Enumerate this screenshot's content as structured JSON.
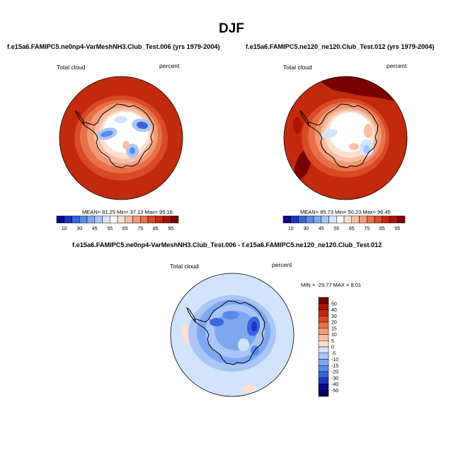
{
  "page": {
    "title": "DJF"
  },
  "panels": [
    {
      "title": "f.e15a6.FAMIPC5.ne0np4-VarMeshNH3.Club_Test.006 (yrs 1979-2004)",
      "left_label": "Total cloud",
      "right_label": "percent",
      "stats_text": "MEAN=  81.25  Min=  37.13  Max=  95.16"
    },
    {
      "title": "f.e15a6.FAMIPC5.ne120_ne120.Club_Test.012 (yrs 1979-2004)",
      "left_label": "Total cloud",
      "right_label": "percent",
      "stats_text": "MEAN=  85.73  Min=  50.23  Max=  96.45"
    },
    {
      "title": "f.e15a6.FAMIPC5.ne0np4-VarMeshNH3.Club_Test.006 - f.e15a6.FAMIPC5.ne120_ne120.Club_Test.012",
      "left_label": "Total cloud",
      "right_label": "percent",
      "stats_text": "MIN = -29.77  MAX =    8.01"
    }
  ],
  "chart_data": [
    {
      "type": "heatmap",
      "title": "f.e15a6.FAMIPC5.ne0np4-VarMeshNH3.Club_Test.006 (yrs 1979-2004)",
      "variable": "Total cloud",
      "units": "percent",
      "projection": "south polar stereographic",
      "stats": {
        "mean": 81.25,
        "min": 37.13,
        "max": 95.16
      },
      "colorbar": {
        "levels": [
          10,
          20,
          30,
          40,
          45,
          50,
          55,
          60,
          65,
          70,
          75,
          80,
          85,
          90,
          95
        ],
        "tick_labels": [
          "10",
          "30",
          "45",
          "55",
          "65",
          "75",
          "85",
          "95"
        ],
        "colors": [
          "#08088a",
          "#1f33c4",
          "#3a64dc",
          "#5a8ae8",
          "#7ea7f0",
          "#a9c6f7",
          "#d2e4fb",
          "#ffffff",
          "#fde0d0",
          "#f9bfa3",
          "#f29a77",
          "#e87049",
          "#d84b24",
          "#c22a0c",
          "#a81500",
          "#7a0000"
        ]
      }
    },
    {
      "type": "heatmap",
      "title": "f.e15a6.FAMIPC5.ne120_ne120.Club_Test.012 (yrs 1979-2004)",
      "variable": "Total cloud",
      "units": "percent",
      "projection": "south polar stereographic",
      "stats": {
        "mean": 85.73,
        "min": 50.23,
        "max": 96.45
      },
      "colorbar": {
        "levels": [
          10,
          20,
          30,
          40,
          45,
          50,
          55,
          60,
          65,
          70,
          75,
          80,
          85,
          90,
          95
        ],
        "tick_labels": [
          "10",
          "30",
          "45",
          "55",
          "65",
          "75",
          "85",
          "95"
        ],
        "colors": [
          "#08088a",
          "#1f33c4",
          "#3a64dc",
          "#5a8ae8",
          "#7ea7f0",
          "#a9c6f7",
          "#d2e4fb",
          "#ffffff",
          "#fde0d0",
          "#f9bfa3",
          "#f29a77",
          "#e87049",
          "#d84b24",
          "#c22a0c",
          "#a81500",
          "#7a0000"
        ]
      }
    },
    {
      "type": "heatmap",
      "title": "f.e15a6.FAMIPC5.ne0np4-VarMeshNH3.Club_Test.006 - f.e15a6.FAMIPC5.ne120_ne120.Club_Test.012",
      "variable": "Total cloud",
      "units": "percent",
      "projection": "south polar stereographic",
      "stats": {
        "min": -29.77,
        "max": 8.01
      },
      "colorbar": {
        "orientation": "vertical",
        "levels": [
          50,
          40,
          30,
          20,
          15,
          10,
          5,
          0,
          -5,
          -10,
          -15,
          -20,
          -30,
          -40,
          -50
        ],
        "tick_labels": [
          "50",
          "40",
          "30",
          "20",
          "15",
          "10",
          "5",
          "0",
          "-5",
          "-10",
          "-15",
          "-20",
          "-30",
          "-40",
          "-50"
        ],
        "colors": [
          "#7a0000",
          "#a81500",
          "#c22a0c",
          "#d84b24",
          "#e87049",
          "#f29a77",
          "#f9bfa3",
          "#fde0d0",
          "#d2e4fb",
          "#a9c6f7",
          "#7ea7f0",
          "#5a8ae8",
          "#3a64dc",
          "#1f33c4",
          "#08088a",
          "#00005a"
        ]
      }
    }
  ]
}
